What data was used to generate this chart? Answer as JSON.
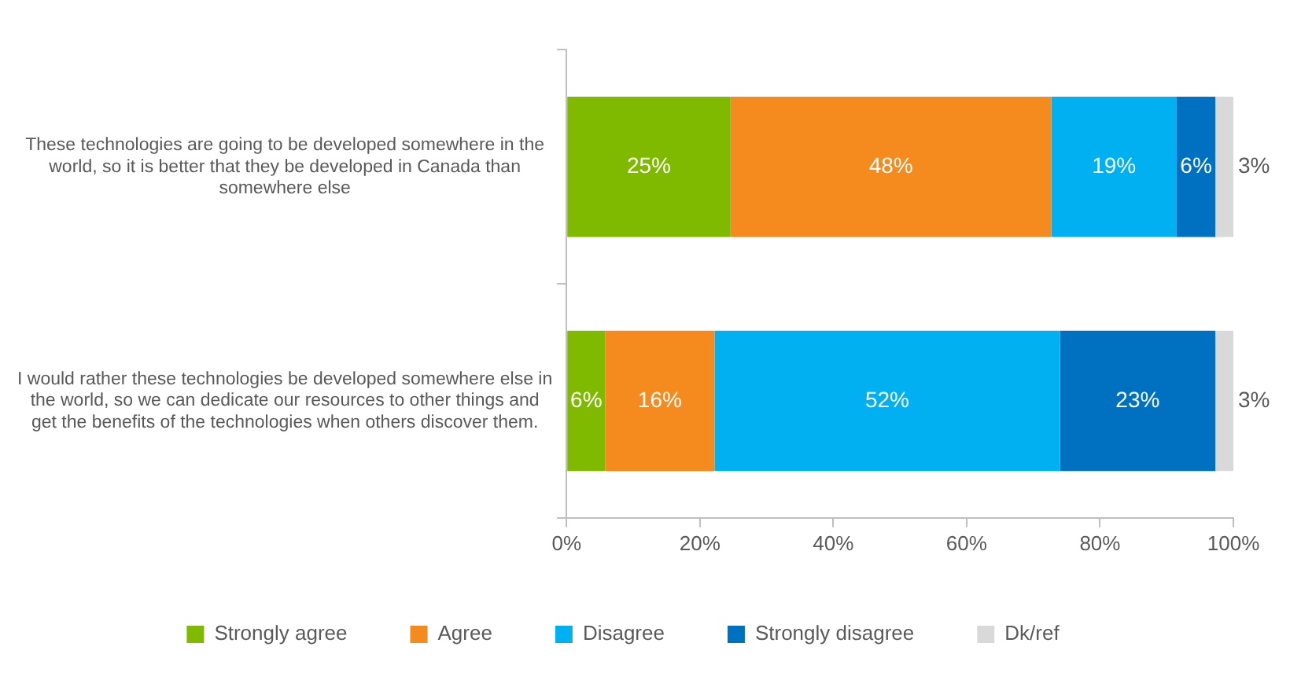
{
  "chart_data": {
    "type": "bar",
    "orientation": "horizontal",
    "stacked": true,
    "categories": [
      "These technologies are going to be developed somewhere in the world, so it is better that they be developed in Canada than somewhere else",
      "I would rather these technologies be developed somewhere else in the world, so we can dedicate our resources to other things and get the benefits of the technologies when others discover them."
    ],
    "series": [
      {
        "name": "Strongly agree",
        "color": "#7fba00",
        "values": [
          24.6,
          5.8
        ],
        "value_labels": [
          "25%",
          "6%"
        ]
      },
      {
        "name": "Agree",
        "color": "#f58a1f",
        "values": [
          48.1,
          16.4
        ],
        "value_labels": [
          "48%",
          "16%"
        ]
      },
      {
        "name": "Disagree",
        "color": "#00b0f0",
        "values": [
          18.8,
          51.8
        ],
        "value_labels": [
          "19%",
          "52%"
        ]
      },
      {
        "name": "Strongly disagree",
        "color": "#0070c0",
        "values": [
          5.8,
          23.3
        ],
        "value_labels": [
          "6%",
          "23%"
        ]
      },
      {
        "name": "Dk/ref",
        "color": "#d9d9d9",
        "values": [
          2.7,
          2.7
        ],
        "value_labels": [
          "3%",
          "3%"
        ]
      }
    ],
    "xlim": [
      0,
      100
    ],
    "xticks": [
      {
        "value": 0,
        "label": "0%"
      },
      {
        "value": 20,
        "label": "20%"
      },
      {
        "value": 40,
        "label": "40%"
      },
      {
        "value": 60,
        "label": "60%"
      },
      {
        "value": 80,
        "label": "80%"
      },
      {
        "value": 100,
        "label": "100%"
      }
    ],
    "grid": false,
    "legend": "bottom"
  }
}
